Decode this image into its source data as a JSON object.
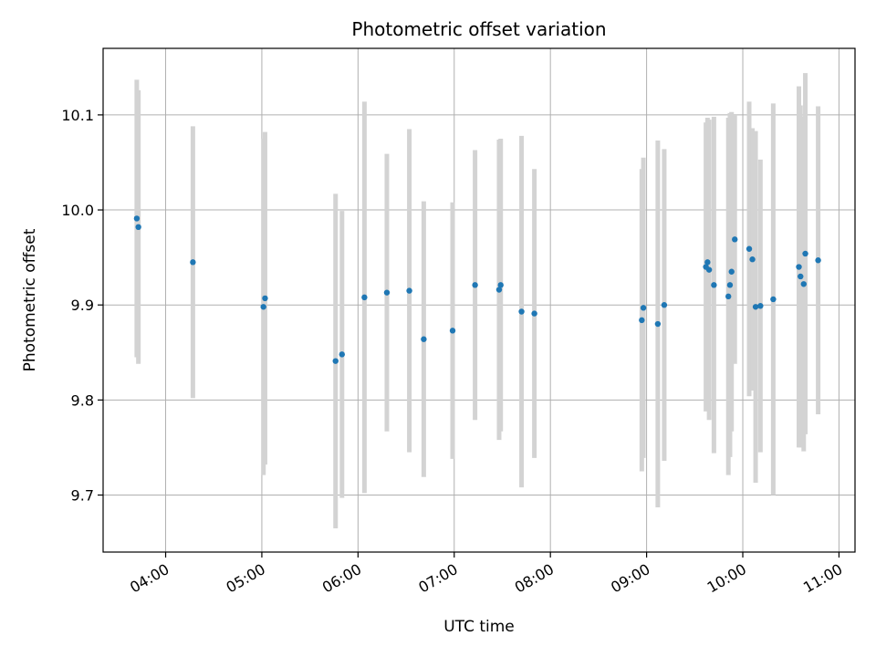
{
  "chart_data": {
    "type": "scatter",
    "title": "Photometric offset variation",
    "xlabel": "UTC time",
    "ylabel": "Photometric offset",
    "xlim": [
      "03:21",
      "11:10"
    ],
    "ylim": [
      9.64,
      10.17
    ],
    "x_ticks": [
      "04:00",
      "05:00",
      "06:00",
      "07:00",
      "08:00",
      "09:00",
      "10:00",
      "11:00"
    ],
    "y_ticks": [
      9.7,
      9.8,
      9.9,
      10.0,
      10.1
    ],
    "grid": true,
    "point_color": "#1f77b4",
    "errorbar_color": "#d3d3d3",
    "points": [
      {
        "x": "03:42",
        "y": 9.991,
        "err": 0.146
      },
      {
        "x": "03:43",
        "y": 9.982,
        "err": 0.144
      },
      {
        "x": "04:17",
        "y": 9.945,
        "err": 0.143
      },
      {
        "x": "05:01",
        "y": 9.898,
        "err": 0.177
      },
      {
        "x": "05:02",
        "y": 9.907,
        "err": 0.175
      },
      {
        "x": "05:46",
        "y": 9.841,
        "err": 0.176
      },
      {
        "x": "05:50",
        "y": 9.848,
        "err": 0.151
      },
      {
        "x": "06:04",
        "y": 9.908,
        "err": 0.206
      },
      {
        "x": "06:18",
        "y": 9.913,
        "err": 0.146
      },
      {
        "x": "06:32",
        "y": 9.915,
        "err": 0.17
      },
      {
        "x": "06:41",
        "y": 9.864,
        "err": 0.145
      },
      {
        "x": "06:59",
        "y": 9.873,
        "err": 0.135
      },
      {
        "x": "07:13",
        "y": 9.921,
        "err": 0.142
      },
      {
        "x": "07:28",
        "y": 9.916,
        "err": 0.158
      },
      {
        "x": "07:29",
        "y": 9.921,
        "err": 0.154
      },
      {
        "x": "07:42",
        "y": 9.893,
        "err": 0.185
      },
      {
        "x": "07:50",
        "y": 9.891,
        "err": 0.152
      },
      {
        "x": "08:57",
        "y": 9.884,
        "err": 0.159
      },
      {
        "x": "08:58",
        "y": 9.897,
        "err": 0.158
      },
      {
        "x": "09:07",
        "y": 9.88,
        "err": 0.193
      },
      {
        "x": "09:11",
        "y": 9.9,
        "err": 0.164
      },
      {
        "x": "09:37",
        "y": 9.94,
        "err": 0.152
      },
      {
        "x": "09:38",
        "y": 9.945,
        "err": 0.152
      },
      {
        "x": "09:39",
        "y": 9.937,
        "err": 0.158
      },
      {
        "x": "09:42",
        "y": 9.921,
        "err": 0.177
      },
      {
        "x": "09:51",
        "y": 9.909,
        "err": 0.188
      },
      {
        "x": "09:52",
        "y": 9.921,
        "err": 0.181
      },
      {
        "x": "09:53",
        "y": 9.935,
        "err": 0.168
      },
      {
        "x": "09:55",
        "y": 9.969,
        "err": 0.131
      },
      {
        "x": "10:04",
        "y": 9.959,
        "err": 0.155
      },
      {
        "x": "10:06",
        "y": 9.948,
        "err": 0.138
      },
      {
        "x": "10:08",
        "y": 9.898,
        "err": 0.185
      },
      {
        "x": "10:11",
        "y": 9.899,
        "err": 0.154
      },
      {
        "x": "10:19",
        "y": 9.906,
        "err": 0.206
      },
      {
        "x": "10:35",
        "y": 9.94,
        "err": 0.19
      },
      {
        "x": "10:36",
        "y": 9.93,
        "err": 0.18
      },
      {
        "x": "10:38",
        "y": 9.922,
        "err": 0.176
      },
      {
        "x": "10:39",
        "y": 9.954,
        "err": 0.19
      },
      {
        "x": "10:47",
        "y": 9.947,
        "err": 0.162
      }
    ]
  }
}
